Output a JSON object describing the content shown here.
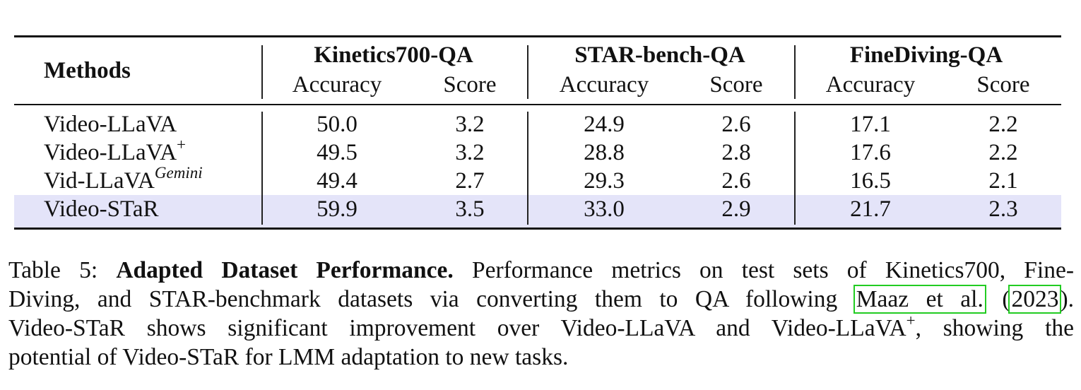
{
  "table": {
    "methods_header": "Methods",
    "groups": [
      {
        "name": "Kinetics700-QA",
        "cols": [
          "Accuracy",
          "Score"
        ]
      },
      {
        "name": "STAR-bench-QA",
        "cols": [
          "Accuracy",
          "Score"
        ]
      },
      {
        "name": "FineDiving-QA",
        "cols": [
          "Accuracy",
          "Score"
        ]
      }
    ],
    "rows": [
      {
        "method": "Video-LLaVA",
        "sup": "",
        "values": [
          "50.0",
          "3.2",
          "24.9",
          "2.6",
          "17.1",
          "2.2"
        ],
        "highlight": false
      },
      {
        "method": "Video-LLaVA",
        "sup": "+",
        "values": [
          "49.5",
          "3.2",
          "28.8",
          "2.8",
          "17.6",
          "2.2"
        ],
        "highlight": false
      },
      {
        "method": "Vid-LLaVA",
        "sup": "Gemini",
        "values": [
          "49.4",
          "2.7",
          "29.3",
          "2.6",
          "16.5",
          "2.1"
        ],
        "highlight": false
      },
      {
        "method": "Video-STaR",
        "sup": "",
        "values": [
          "59.9",
          "3.5",
          "33.0",
          "2.9",
          "21.7",
          "2.3"
        ],
        "highlight": true
      }
    ],
    "highlight_color": "#e4e4f9"
  },
  "caption": {
    "label": "Table 5:",
    "title": "Adapted Dataset Performance.",
    "line1_rest": "Performance metrics on test sets of Kinetics700, Fine-",
    "line2_pre": "Diving, and STAR-benchmark datasets via converting them to QA following",
    "cite_author": "Maaz et al.",
    "cite_open": "(",
    "cite_year": "2023",
    "cite_close": ").",
    "line3_pre": "Video-STaR shows significant improvement over Video-LLaVA and Video-LLaVA",
    "line3_sup": "+",
    "line3_post": ", showing the",
    "line4": "potential of Video-STaR for LMM adaptation to new tasks.",
    "cite_box_color": "#22cc22"
  }
}
